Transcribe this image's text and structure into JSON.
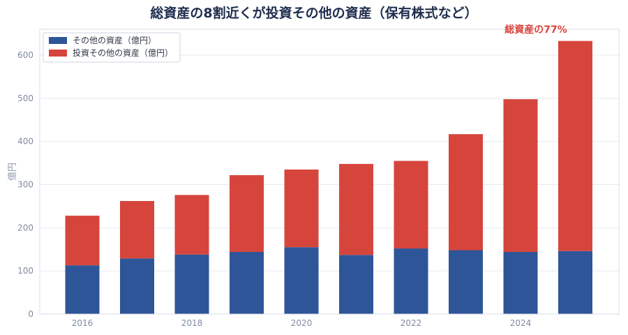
{
  "chart_data": {
    "type": "bar",
    "stacked": true,
    "title": "総資産の8割近くが投資その他の資産（保有株式など）",
    "xlabel": "",
    "ylabel": "億円",
    "categories": [
      "2016",
      "2017",
      "2018",
      "2019",
      "2020",
      "2021",
      "2022",
      "2023",
      "2024",
      "2025"
    ],
    "x_tick_labels": [
      "2016",
      "2018",
      "2020",
      "2022",
      "2024"
    ],
    "series": [
      {
        "name": "その他の資産（億円）",
        "color": "#2e5597",
        "values": [
          113,
          129,
          138,
          144,
          155,
          137,
          152,
          148,
          144,
          146
        ]
      },
      {
        "name": "投資その他の資産（億円）",
        "color": "#d6453c",
        "values": [
          115,
          133,
          138,
          178,
          180,
          211,
          203,
          269,
          354,
          487
        ]
      }
    ],
    "ylim": [
      0,
      660
    ],
    "y_ticks": [
      0,
      100,
      200,
      300,
      400,
      500,
      600
    ],
    "grid": true,
    "legend_position": "top-left",
    "annotation": {
      "text": "総資産の77%",
      "category": "2024",
      "color": "#d9453c"
    }
  }
}
